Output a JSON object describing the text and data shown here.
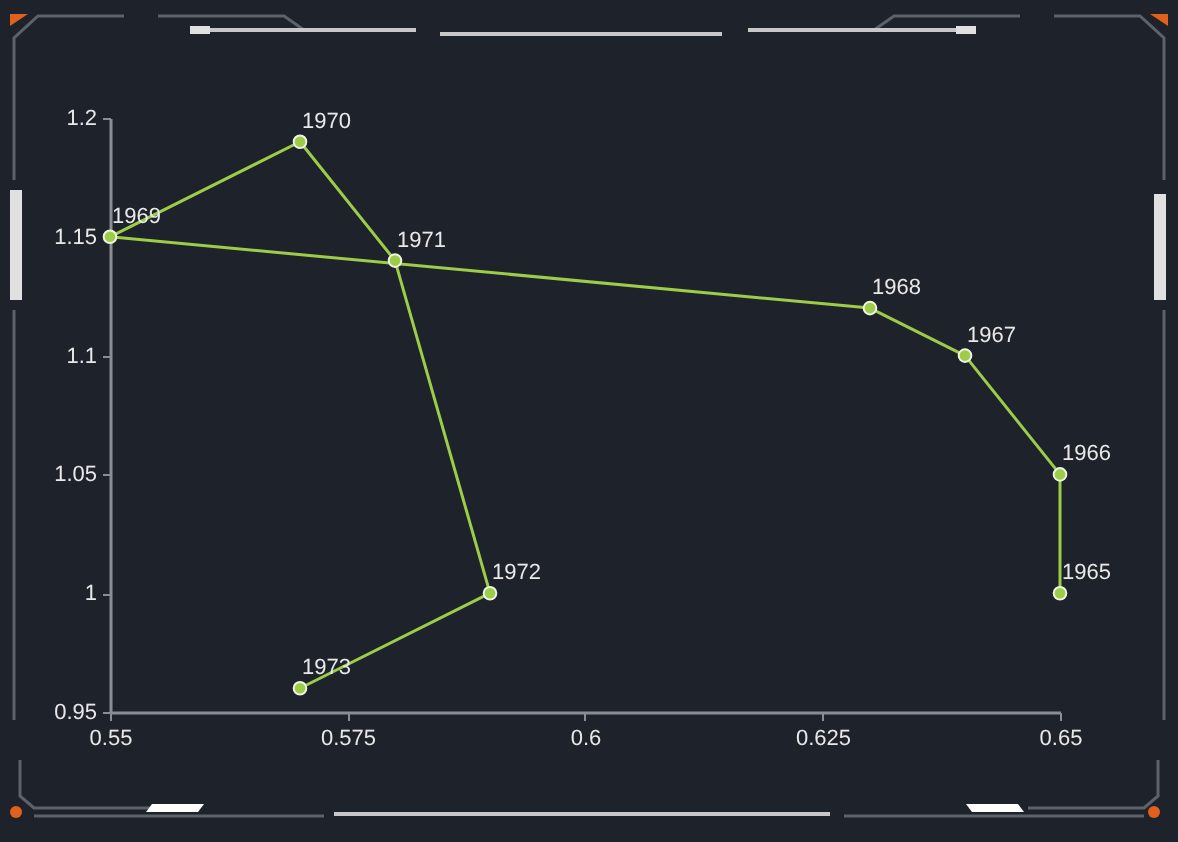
{
  "chart_data": {
    "type": "line",
    "x": [
      0.65,
      0.65,
      0.64,
      0.63,
      0.55,
      0.57,
      0.58,
      0.59,
      0.57
    ],
    "values": [
      1.0,
      1.05,
      1.1,
      1.12,
      1.15,
      1.19,
      1.14,
      1.0,
      0.96
    ],
    "color": "#9ccc48",
    "xlim": [
      0.55,
      0.65
    ],
    "xticks": [
      0.55,
      0.575,
      0.6,
      0.625,
      0.65
    ],
    "ylim": [
      0.95,
      1.2
    ],
    "yticks": [
      0.95,
      1,
      1.05,
      1.1,
      1.15,
      1.2
    ],
    "marker": "circle",
    "annotations": [
      {
        "text": "1965",
        "x": 0.65,
        "y": 1.0
      },
      {
        "text": "1966",
        "x": 0.65,
        "y": 1.05
      },
      {
        "text": "1967",
        "x": 0.64,
        "y": 1.1
      },
      {
        "text": "1968",
        "x": 0.63,
        "y": 1.12
      },
      {
        "text": "1969",
        "x": 0.55,
        "y": 1.15
      },
      {
        "text": "1970",
        "x": 0.57,
        "y": 1.19
      },
      {
        "text": "1971",
        "x": 0.58,
        "y": 1.14
      },
      {
        "text": "1972",
        "x": 0.59,
        "y": 1.0
      },
      {
        "text": "1973",
        "x": 0.57,
        "y": 0.96
      }
    ]
  }
}
